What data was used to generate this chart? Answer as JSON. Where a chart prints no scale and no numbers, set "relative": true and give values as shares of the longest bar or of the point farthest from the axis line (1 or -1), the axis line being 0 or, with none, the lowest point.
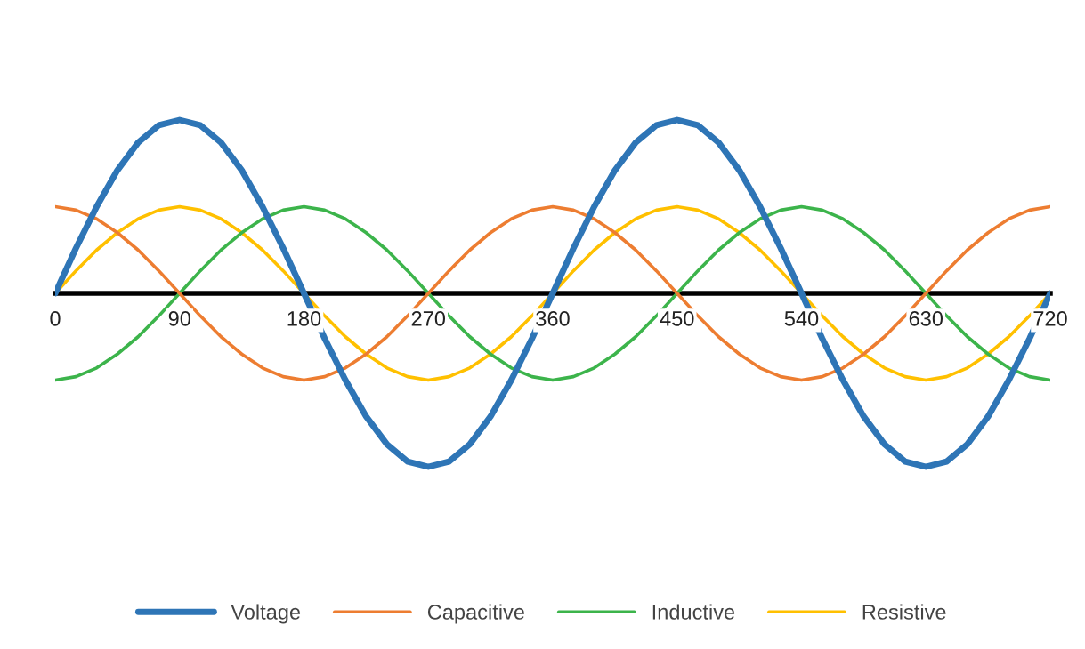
{
  "chart_data": {
    "type": "line",
    "relative": true,
    "legend": "bottom",
    "grid": false,
    "x": [
      0,
      15,
      30,
      45,
      60,
      75,
      90,
      105,
      120,
      135,
      150,
      165,
      180,
      195,
      210,
      225,
      240,
      255,
      270,
      285,
      300,
      315,
      330,
      345,
      360,
      375,
      390,
      405,
      420,
      435,
      450,
      465,
      480,
      495,
      510,
      525,
      540,
      555,
      570,
      585,
      600,
      615,
      630,
      645,
      660,
      675,
      690,
      705,
      720
    ],
    "xlim": [
      0,
      720
    ],
    "xticks": [
      0,
      90,
      180,
      270,
      360,
      450,
      540,
      630,
      720
    ],
    "series": [
      {
        "name": "Voltage",
        "color": "#2e75b6",
        "values": [
          0,
          0.26,
          0.5,
          0.71,
          0.87,
          0.97,
          1,
          0.97,
          0.87,
          0.71,
          0.5,
          0.26,
          0,
          -0.26,
          -0.5,
          -0.71,
          -0.87,
          -0.97,
          -1,
          -0.97,
          -0.87,
          -0.71,
          -0.5,
          -0.26,
          0,
          0.26,
          0.5,
          0.71,
          0.87,
          0.97,
          1,
          0.97,
          0.87,
          0.71,
          0.5,
          0.26,
          0,
          -0.26,
          -0.5,
          -0.71,
          -0.87,
          -0.97,
          -1,
          -0.97,
          -0.87,
          -0.71,
          -0.5,
          -0.26,
          0
        ]
      },
      {
        "name": "Capacitive",
        "color": "#ed7d31",
        "values": [
          0.5,
          0.48,
          0.43,
          0.35,
          0.25,
          0.13,
          0,
          -0.13,
          -0.25,
          -0.35,
          -0.43,
          -0.48,
          -0.5,
          -0.48,
          -0.43,
          -0.35,
          -0.25,
          -0.13,
          0,
          0.13,
          0.25,
          0.35,
          0.43,
          0.48,
          0.5,
          0.48,
          0.43,
          0.35,
          0.25,
          0.13,
          0,
          -0.13,
          -0.25,
          -0.35,
          -0.43,
          -0.48,
          -0.5,
          -0.48,
          -0.43,
          -0.35,
          -0.25,
          -0.13,
          0,
          0.13,
          0.25,
          0.35,
          0.43,
          0.48,
          0.5
        ]
      },
      {
        "name": "Inductive",
        "color": "#3cb44b",
        "values": [
          -0.5,
          -0.48,
          -0.43,
          -0.35,
          -0.25,
          -0.13,
          0,
          0.13,
          0.25,
          0.35,
          0.43,
          0.48,
          0.5,
          0.48,
          0.43,
          0.35,
          0.25,
          0.13,
          0,
          -0.13,
          -0.25,
          -0.35,
          -0.43,
          -0.48,
          -0.5,
          -0.48,
          -0.43,
          -0.35,
          -0.25,
          -0.13,
          0,
          0.13,
          0.25,
          0.35,
          0.43,
          0.48,
          0.5,
          0.48,
          0.43,
          0.35,
          0.25,
          0.13,
          0,
          -0.13,
          -0.25,
          -0.35,
          -0.43,
          -0.48,
          -0.5
        ]
      },
      {
        "name": "Resistive",
        "color": "#ffc000",
        "values": [
          0,
          0.13,
          0.25,
          0.35,
          0.43,
          0.48,
          0.5,
          0.48,
          0.43,
          0.35,
          0.25,
          0.13,
          0,
          -0.13,
          -0.25,
          -0.35,
          -0.43,
          -0.48,
          -0.5,
          -0.48,
          -0.43,
          -0.35,
          -0.25,
          -0.13,
          0,
          0.13,
          0.25,
          0.35,
          0.43,
          0.48,
          0.5,
          0.48,
          0.43,
          0.35,
          0.25,
          0.13,
          0,
          -0.13,
          -0.25,
          -0.35,
          -0.43,
          -0.48,
          -0.5,
          -0.48,
          -0.43,
          -0.35,
          -0.25,
          -0.13,
          0
        ]
      }
    ]
  }
}
